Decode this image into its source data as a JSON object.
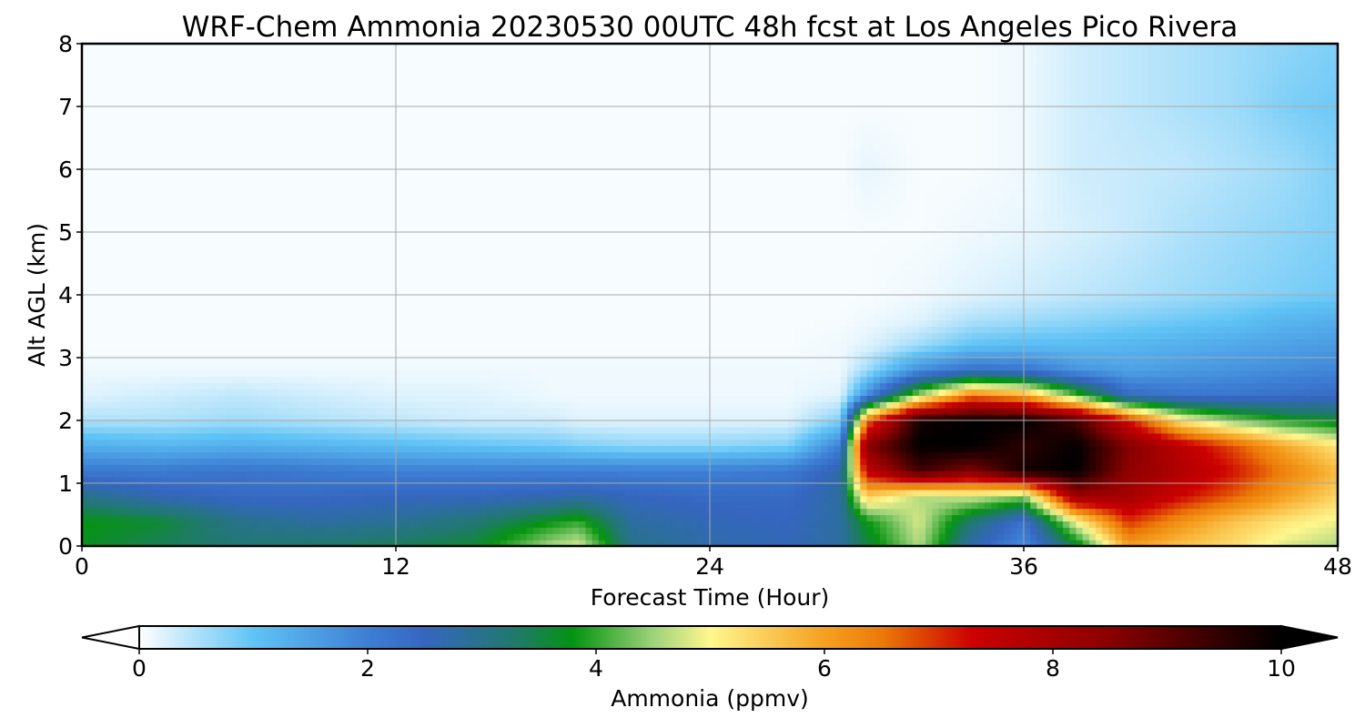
{
  "chart_data": {
    "type": "heatmap",
    "title": "WRF-Chem Ammonia  20230530 00UTC 48h fcst at Los Angeles Pico Rivera",
    "xlabel": "Forecast Time (Hour)",
    "ylabel": "Alt AGL (km)",
    "xlim": [
      0,
      48
    ],
    "ylim": [
      0,
      8
    ],
    "x_ticks": [
      "0",
      "12",
      "24",
      "36",
      "48"
    ],
    "y_ticks": [
      "0",
      "1",
      "2",
      "3",
      "4",
      "5",
      "6",
      "7",
      "8"
    ],
    "grid": true,
    "colorbar": {
      "label": "Ammonia  (ppmv)",
      "range": [
        0,
        10
      ],
      "ticks": [
        "0",
        "2",
        "4",
        "6",
        "8",
        "10"
      ],
      "extend": "both",
      "color_stops": [
        {
          "value": 0,
          "color": "#ffffff"
        },
        {
          "value": 1,
          "color": "#5fc3f5"
        },
        {
          "value": 2,
          "color": "#3d7fd4"
        },
        {
          "value": 2.5,
          "color": "#3566c0"
        },
        {
          "value": 3.3,
          "color": "#1f7a6a"
        },
        {
          "value": 3.8,
          "color": "#059410"
        },
        {
          "value": 4.5,
          "color": "#9dd27a"
        },
        {
          "value": 5,
          "color": "#fff78e"
        },
        {
          "value": 6,
          "color": "#f5a020"
        },
        {
          "value": 6.5,
          "color": "#ec7a08"
        },
        {
          "value": 7.3,
          "color": "#cc0000"
        },
        {
          "value": 8.5,
          "color": "#8a0000"
        },
        {
          "value": 10,
          "color": "#000000"
        }
      ]
    },
    "time_hours": [
      0,
      3,
      6,
      9,
      12,
      15,
      18,
      19,
      21,
      24,
      27,
      29,
      30,
      32,
      34,
      36,
      38,
      40,
      42,
      44,
      46,
      48
    ],
    "altitude_km": [
      0,
      0.4,
      0.8,
      1.2,
      1.6,
      2.0,
      2.4,
      2.8,
      3.2,
      3.6,
      4.0,
      5.0,
      6.0,
      7.0,
      8.0
    ],
    "values_ppmv": [
      [
        3.7,
        3.4,
        3.2,
        3.3,
        3.4,
        3.6,
        4.6,
        4.8,
        3.0,
        2.7,
        2.6,
        2.8,
        3.5,
        4.6,
        2.7,
        1.8,
        3.5,
        6.0,
        5.6,
        5.3,
        4.8,
        4.6
      ],
      [
        3.8,
        3.6,
        3.0,
        2.8,
        2.9,
        3.2,
        3.8,
        4.0,
        2.8,
        2.6,
        2.5,
        2.8,
        3.8,
        4.8,
        3.2,
        2.2,
        5.0,
        7.0,
        6.2,
        5.6,
        5.2,
        4.9
      ],
      [
        3.0,
        2.6,
        2.4,
        2.4,
        2.5,
        2.5,
        2.6,
        2.7,
        2.5,
        2.4,
        2.4,
        2.8,
        5.5,
        4.6,
        4.8,
        4.4,
        8.2,
        8.0,
        7.3,
        6.7,
        6.0,
        5.4
      ],
      [
        2.1,
        2.1,
        2.2,
        2.1,
        2.0,
        2.0,
        2.0,
        2.0,
        2.0,
        2.0,
        2.1,
        2.7,
        7.5,
        9.3,
        8.6,
        9.8,
        10.0,
        8.4,
        7.8,
        7.2,
        6.4,
        5.7
      ],
      [
        1.3,
        1.2,
        1.3,
        1.2,
        1.1,
        1.0,
        0.9,
        0.8,
        0.7,
        0.7,
        0.8,
        2.0,
        8.5,
        10.0,
        10.0,
        9.5,
        10.0,
        8.6,
        7.6,
        6.8,
        5.9,
        5.2
      ],
      [
        0.5,
        0.5,
        0.6,
        0.5,
        0.4,
        0.3,
        0.3,
        0.2,
        0.2,
        0.2,
        0.2,
        0.8,
        6.5,
        9.8,
        10.0,
        10.0,
        9.3,
        7.2,
        5.2,
        4.4,
        3.9,
        3.6
      ],
      [
        0.2,
        0.3,
        0.4,
        0.3,
        0.2,
        0.2,
        0.1,
        0.1,
        0.1,
        0.1,
        0.1,
        0.2,
        1.8,
        4.6,
        6.5,
        6.0,
        4.2,
        2.4,
        2.2,
        2.2,
        2.3,
        2.4
      ],
      [
        0.1,
        0.1,
        0.1,
        0.1,
        0.1,
        0.1,
        0.1,
        0.1,
        0.1,
        0.1,
        0.1,
        0.1,
        0.6,
        1.8,
        2.3,
        2.2,
        1.7,
        1.5,
        1.6,
        1.7,
        1.8,
        1.9
      ],
      [
        0.05,
        0.05,
        0.05,
        0.05,
        0.05,
        0.05,
        0.05,
        0.05,
        0.05,
        0.05,
        0.05,
        0.1,
        0.2,
        0.6,
        1.0,
        1.1,
        1.1,
        1.2,
        1.3,
        1.4,
        1.5,
        1.6
      ],
      [
        0.05,
        0.05,
        0.05,
        0.05,
        0.05,
        0.05,
        0.05,
        0.05,
        0.05,
        0.05,
        0.05,
        0.05,
        0.1,
        0.2,
        0.5,
        0.6,
        0.7,
        0.8,
        0.9,
        1.0,
        1.2,
        1.3
      ],
      [
        0.05,
        0.05,
        0.05,
        0.05,
        0.05,
        0.05,
        0.05,
        0.05,
        0.05,
        0.05,
        0.05,
        0.05,
        0.05,
        0.1,
        0.2,
        0.3,
        0.4,
        0.5,
        0.6,
        0.7,
        0.8,
        0.9
      ],
      [
        0.05,
        0.05,
        0.05,
        0.05,
        0.05,
        0.05,
        0.05,
        0.05,
        0.05,
        0.05,
        0.05,
        0.05,
        0.05,
        0.05,
        0.1,
        0.15,
        0.25,
        0.35,
        0.5,
        0.6,
        0.7,
        0.8
      ],
      [
        0.05,
        0.05,
        0.05,
        0.05,
        0.05,
        0.05,
        0.05,
        0.05,
        0.05,
        0.05,
        0.05,
        0.05,
        0.15,
        0.05,
        0.05,
        0.1,
        0.3,
        0.35,
        0.4,
        0.5,
        0.6,
        0.8
      ],
      [
        0.05,
        0.05,
        0.05,
        0.05,
        0.05,
        0.05,
        0.05,
        0.05,
        0.05,
        0.05,
        0.05,
        0.05,
        0.05,
        0.05,
        0.05,
        0.1,
        0.3,
        0.4,
        0.5,
        0.6,
        0.8,
        0.9
      ],
      [
        0.05,
        0.05,
        0.05,
        0.05,
        0.05,
        0.05,
        0.05,
        0.05,
        0.05,
        0.05,
        0.05,
        0.05,
        0.05,
        0.05,
        0.05,
        0.1,
        0.3,
        0.4,
        0.5,
        0.6,
        0.7,
        0.8
      ]
    ]
  }
}
